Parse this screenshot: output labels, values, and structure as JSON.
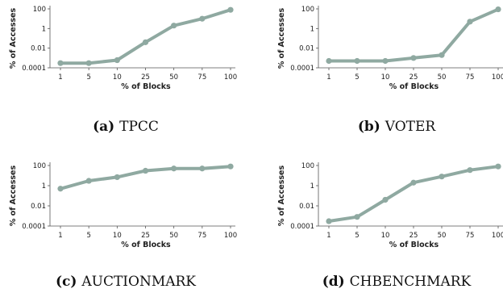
{
  "chart_data": [
    {
      "type": "line",
      "caption_letter": "(a)",
      "caption_name": "TPCC",
      "xlabel": "% of Blocks",
      "ylabel": "% of Accesses",
      "categories": [
        "1",
        "5",
        "10",
        "25",
        "50",
        "75",
        "100"
      ],
      "y_scale": "log",
      "ylim": [
        0.0001,
        100
      ],
      "yticks": [
        "0.0001",
        "0.01",
        "1",
        "100"
      ],
      "values": [
        0.0003,
        0.0003,
        0.0006,
        0.04,
        2,
        10,
        80
      ]
    },
    {
      "type": "line",
      "caption_letter": "(b)",
      "caption_name": "VOTER",
      "xlabel": "% of Blocks",
      "ylabel": "% of Accesses",
      "categories": [
        "1",
        "5",
        "10",
        "25",
        "50",
        "75",
        "100"
      ],
      "y_scale": "log",
      "ylim": [
        0.0001,
        100
      ],
      "yticks": [
        "0.0001",
        "0.01",
        "1",
        "100"
      ],
      "values": [
        0.0005,
        0.0005,
        0.0005,
        0.001,
        0.002,
        5,
        90
      ]
    },
    {
      "type": "line",
      "caption_letter": "(c)",
      "caption_name": "AUCTIONMARK",
      "xlabel": "% of Blocks",
      "ylabel": "% of Accesses",
      "categories": [
        "1",
        "5",
        "10",
        "25",
        "50",
        "75",
        "100"
      ],
      "y_scale": "log",
      "ylim": [
        0.0001,
        100
      ],
      "yticks": [
        "0.0001",
        "0.01",
        "1",
        "100"
      ],
      "values": [
        0.5,
        3,
        7,
        30,
        50,
        50,
        80
      ]
    },
    {
      "type": "line",
      "caption_letter": "(d)",
      "caption_name": "CHBENCHMARK",
      "xlabel": "% of Blocks",
      "ylabel": "% of Accesses",
      "categories": [
        "1",
        "5",
        "10",
        "25",
        "50",
        "75",
        "100"
      ],
      "y_scale": "log",
      "ylim": [
        0.0001,
        100
      ],
      "yticks": [
        "0.0001",
        "0.01",
        "1",
        "100"
      ],
      "values": [
        0.0003,
        0.0008,
        0.04,
        2,
        8,
        35,
        80
      ]
    }
  ],
  "style": {
    "line_color": "#8fa9a1",
    "axis_color": "#555555"
  }
}
